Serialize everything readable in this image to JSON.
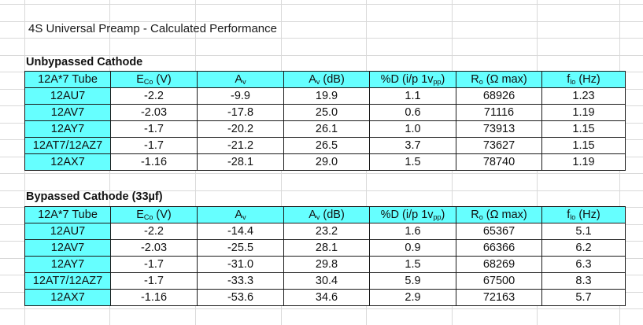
{
  "title": "4S Universal Preamp - Calculated Performance",
  "columns": [
    {
      "main": "12A*7 Tube",
      "sub": "",
      "after": ""
    },
    {
      "main": "E",
      "sub": "Co",
      "after": " (V)"
    },
    {
      "main": "A",
      "sub": "v",
      "after": ""
    },
    {
      "main": "A",
      "sub": "v",
      "after": " (dB)"
    },
    {
      "main": "%D (i/p 1v",
      "sub": "pp",
      "after": ")"
    },
    {
      "main": "R",
      "sub": "o",
      "after": " (Ω max)"
    },
    {
      "main": "f",
      "sub": "lo",
      "after": " (Hz)"
    }
  ],
  "tables": [
    {
      "heading": "Unbypassed Cathode",
      "rows": [
        [
          "12AU7",
          "-2.2",
          "-9.9",
          "19.9",
          "1.1",
          "68926",
          "1.23"
        ],
        [
          "12AV7",
          "-2.03",
          "-17.8",
          "25.0",
          "0.6",
          "71116",
          "1.19"
        ],
        [
          "12AY7",
          "-1.7",
          "-20.2",
          "26.1",
          "1.0",
          "73913",
          "1.15"
        ],
        [
          "12AT7/12AZ7",
          "-1.7",
          "-21.2",
          "26.5",
          "3.7",
          "73627",
          "1.15"
        ],
        [
          "12AX7",
          "-1.16",
          "-28.1",
          "29.0",
          "1.5",
          "78740",
          "1.19"
        ]
      ]
    },
    {
      "heading": "Bypassed Cathode (33µf)",
      "rows": [
        [
          "12AU7",
          "-2.2",
          "-14.4",
          "23.2",
          "1.6",
          "65367",
          "5.1"
        ],
        [
          "12AV7",
          "-2.03",
          "-25.5",
          "28.1",
          "0.9",
          "66366",
          "6.2"
        ],
        [
          "12AY7",
          "-1.7",
          "-31.0",
          "29.8",
          "1.5",
          "68269",
          "6.3"
        ],
        [
          "12AT7/12AZ7",
          "-1.7",
          "-33.3",
          "30.4",
          "5.9",
          "67500",
          "8.3"
        ],
        [
          "12AX7",
          "-1.16",
          "-53.6",
          "34.6",
          "2.9",
          "72163",
          "5.7"
        ]
      ]
    }
  ]
}
